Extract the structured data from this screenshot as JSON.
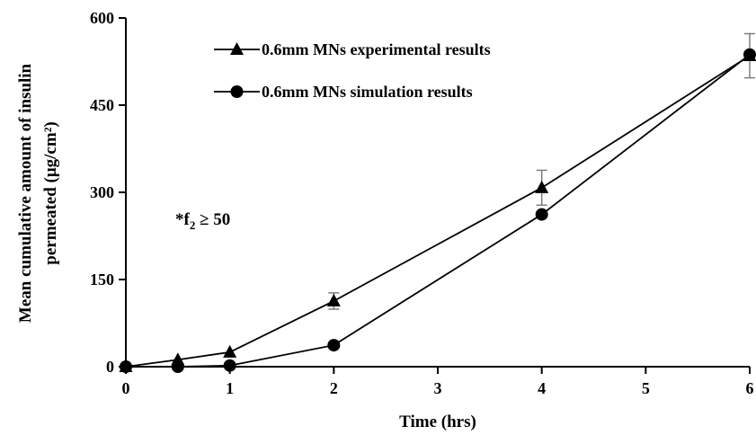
{
  "chart_data": {
    "type": "line",
    "title": "",
    "xlabel": "Time (hrs)",
    "ylabel_line1": "Mean cumulative amount of insulin",
    "ylabel_line2": "permeated (μg/cm²)",
    "xlim": [
      0,
      6
    ],
    "ylim": [
      0,
      600
    ],
    "xticks": [
      0,
      1,
      2,
      3,
      4,
      5,
      6
    ],
    "xtick_labels": [
      "0",
      "1",
      "2",
      "3",
      "4",
      "5",
      "6"
    ],
    "yticks": [
      0,
      150,
      300,
      450,
      600
    ],
    "ytick_labels": [
      "0",
      "150",
      "300",
      "450",
      "600"
    ],
    "grid": false,
    "legend_position": "top-center",
    "annotation": {
      "prefix": "*f",
      "subscript": "2",
      "suffix": " ≥ 50"
    },
    "series": [
      {
        "name": "0.6mm MNs experimental results",
        "marker": "triangle",
        "x": [
          0,
          0.5,
          1,
          2,
          4,
          6
        ],
        "y": [
          0,
          12,
          25,
          113,
          308,
          535
        ],
        "error": [
          0,
          0,
          0,
          14,
          30,
          38
        ]
      },
      {
        "name": "0.6mm MNs simulation results",
        "marker": "circle",
        "x": [
          0,
          0.5,
          1,
          2,
          4,
          6
        ],
        "y": [
          0,
          0,
          2,
          37,
          262,
          537
        ],
        "error": [
          0,
          0,
          0,
          0,
          0,
          0
        ]
      }
    ]
  }
}
